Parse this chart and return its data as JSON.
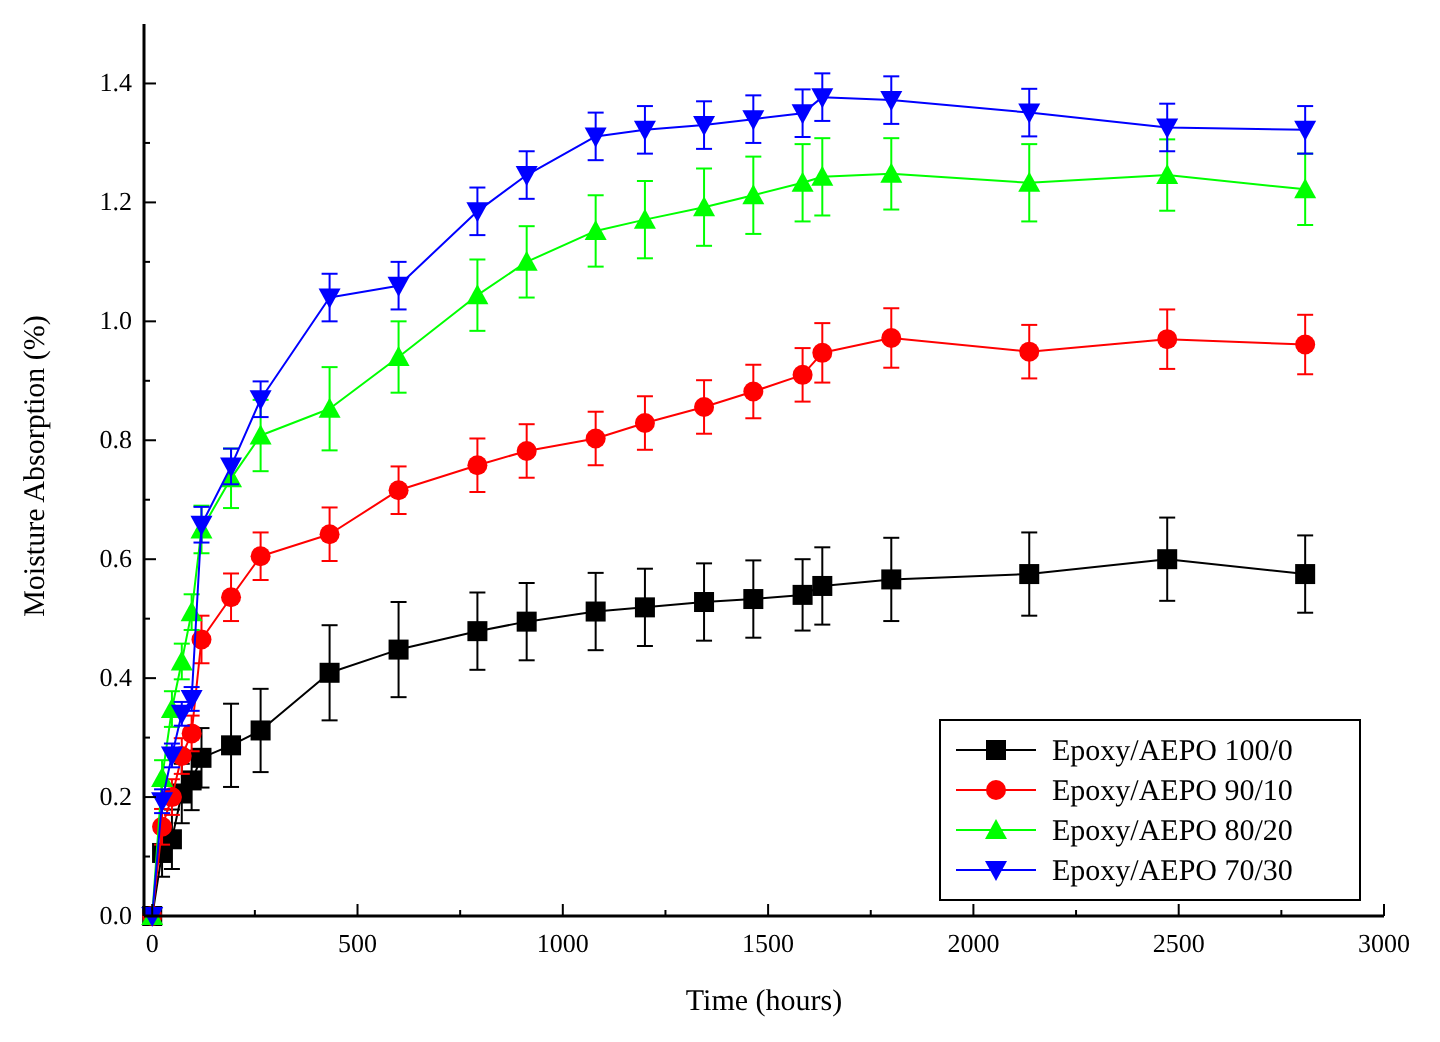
{
  "chart_data": {
    "type": "line",
    "xlabel": "Time (hours)",
    "ylabel": "Moisture Absorption (%)",
    "x": [
      0,
      24,
      48,
      72,
      96,
      120,
      192,
      264,
      432,
      600,
      792,
      912,
      1080,
      1200,
      1344,
      1464,
      1584,
      1632,
      1800,
      2136,
      2472,
      2808
    ],
    "series": [
      {
        "name": "Epoxy/AEPO 100/0",
        "color": "#000000",
        "marker": "square",
        "values": [
          0,
          0.106,
          0.129,
          0.206,
          0.228,
          0.266,
          0.287,
          0.312,
          0.409,
          0.448,
          0.479,
          0.495,
          0.512,
          0.519,
          0.528,
          0.533,
          0.54,
          0.555,
          0.566,
          0.575,
          0.6,
          0.575
        ],
        "errors": [
          0,
          0.04,
          0.05,
          0.05,
          0.05,
          0.05,
          0.07,
          0.07,
          0.08,
          0.08,
          0.065,
          0.065,
          0.065,
          0.065,
          0.065,
          0.065,
          0.06,
          0.065,
          0.07,
          0.07,
          0.07,
          0.065
        ]
      },
      {
        "name": "Epoxy/AEPO 90/10",
        "color": "#ff0000",
        "marker": "circle",
        "values": [
          0,
          0.15,
          0.2,
          0.269,
          0.307,
          0.465,
          0.536,
          0.605,
          0.642,
          0.716,
          0.758,
          0.782,
          0.803,
          0.829,
          0.856,
          0.882,
          0.91,
          0.947,
          0.972,
          0.949,
          0.97,
          0.961
        ],
        "errors": [
          0,
          0.03,
          0.03,
          0.03,
          0.03,
          0.04,
          0.04,
          0.04,
          0.045,
          0.04,
          0.045,
          0.045,
          0.045,
          0.045,
          0.045,
          0.045,
          0.045,
          0.05,
          0.05,
          0.045,
          0.05,
          0.05
        ]
      },
      {
        "name": "Epoxy/AEPO 80/20",
        "color": "#00ff00",
        "marker": "triangle",
        "values": [
          0,
          0.232,
          0.348,
          0.428,
          0.511,
          0.65,
          0.736,
          0.808,
          0.853,
          0.94,
          1.044,
          1.1,
          1.152,
          1.171,
          1.192,
          1.212,
          1.233,
          1.243,
          1.248,
          1.233,
          1.246,
          1.222
        ],
        "errors": [
          0,
          0.03,
          0.03,
          0.03,
          0.03,
          0.04,
          0.05,
          0.06,
          0.07,
          0.06,
          0.06,
          0.06,
          0.06,
          0.065,
          0.065,
          0.065,
          0.065,
          0.065,
          0.06,
          0.065,
          0.06,
          0.06
        ]
      },
      {
        "name": "Epoxy/AEPO 70/30",
        "color": "#0000ff",
        "marker": "triangle-down",
        "values": [
          0,
          0.193,
          0.27,
          0.34,
          0.365,
          0.658,
          0.756,
          0.869,
          1.04,
          1.06,
          1.185,
          1.246,
          1.311,
          1.322,
          1.33,
          1.34,
          1.35,
          1.377,
          1.372,
          1.351,
          1.326,
          1.322
        ],
        "errors": [
          0,
          0.02,
          0.02,
          0.02,
          0.02,
          0.03,
          0.03,
          0.03,
          0.04,
          0.04,
          0.04,
          0.04,
          0.04,
          0.04,
          0.04,
          0.04,
          0.04,
          0.04,
          0.04,
          0.04,
          0.04,
          0.04
        ]
      }
    ],
    "xlim": [
      -20,
      3000
    ],
    "ylim": [
      0,
      1.5
    ],
    "xticks": [
      0,
      {
        "value": 250,
        "label": null
      },
      500,
      {
        "value": 750,
        "label": null
      },
      1000,
      {
        "value": 1250,
        "label": null
      },
      1500,
      {
        "value": 1750,
        "label": null
      },
      2000,
      {
        "value": 2250,
        "label": null
      },
      2500,
      {
        "value": 2750,
        "label": null
      },
      3000
    ],
    "yticks": [
      {
        "value": 0,
        "label": "0.0"
      },
      {
        "value": 0.1,
        "label": null
      },
      {
        "value": 0.2,
        "label": "0.2"
      },
      {
        "value": 0.3,
        "label": null
      },
      {
        "value": 0.4,
        "label": "0.4"
      },
      {
        "value": 0.5,
        "label": null
      },
      {
        "value": 0.6,
        "label": "0.6"
      },
      {
        "value": 0.7,
        "label": null
      },
      {
        "value": 0.8,
        "label": "0.8"
      },
      {
        "value": 0.9,
        "label": null
      },
      {
        "value": 1.0,
        "label": "1.0"
      },
      {
        "value": 1.1,
        "label": null
      },
      {
        "value": 1.2,
        "label": "1.2"
      },
      {
        "value": 1.3,
        "label": null
      },
      {
        "value": 1.4,
        "label": "1.4"
      }
    ],
    "legend": "bottom right",
    "grid": false
  }
}
